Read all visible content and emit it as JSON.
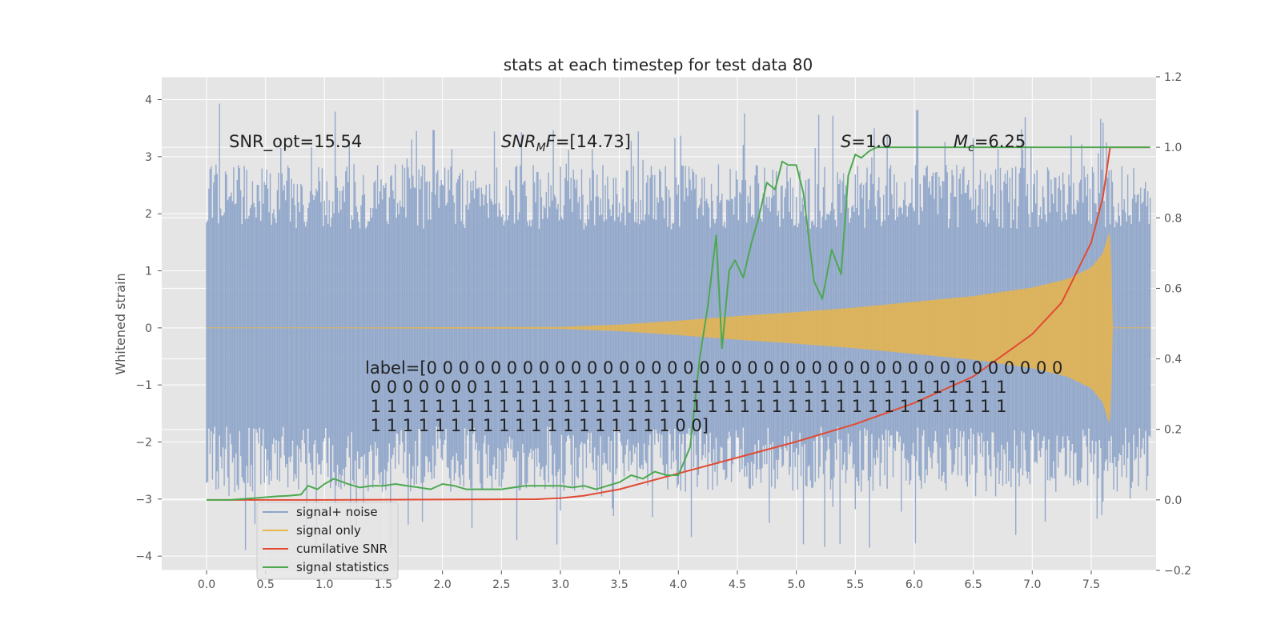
{
  "chart_data": {
    "type": "line",
    "title": "stats at each timestep for test data 80",
    "xlabel": "",
    "ylabel": "Whitened strain",
    "xlim": [
      -0.38,
      8.05
    ],
    "ylim": [
      -4.25,
      4.4
    ],
    "y2lim": [
      -0.2,
      1.2
    ],
    "x_ticks": [
      "0.0",
      "0.5",
      "1.0",
      "1.5",
      "2.0",
      "2.5",
      "3.0",
      "3.5",
      "4.0",
      "4.5",
      "5.0",
      "5.5",
      "6.0",
      "6.5",
      "7.0",
      "7.5"
    ],
    "y_ticks": [
      "−4",
      "−3",
      "−2",
      "−1",
      "0",
      "1",
      "2",
      "3",
      "4"
    ],
    "y2_ticks": [
      "−0.2",
      "0.0",
      "0.2",
      "0.4",
      "0.6",
      "0.8",
      "1.0",
      "1.2"
    ],
    "grid": true,
    "legend_position": "lower-left",
    "colors": {
      "background": "#e5e5e5",
      "grid": "#ffffff",
      "noise": "#8fa5c9",
      "signal": "#e8b54d",
      "snr": "#e24a33",
      "stats": "#4da851"
    },
    "annotations": {
      "snr_opt": "SNR_opt=15.54",
      "snr_mf_name": "SNR",
      "snr_mf_sub": "M",
      "snr_mf_mid": "F",
      "snr_mf_value": "=[14.73]",
      "s_name": "S",
      "s_value": "=1.0",
      "mc_name": "M",
      "mc_sub": "c",
      "mc_value": "=6.25",
      "label_lines": [
        "label=[0 0 0 0 0 0 0 0 0 0 0 0 0 0 0 0 0 0 0 0 0 0 0 0 0 0 0 0 0 0 0 0 0 0 0 0 0 0 0 0",
        " 0 0 0 0 0 0 0 1 1 1 1 1 1 1 1 1 1 1 1 1 1 1 1 1 1 1 1 1 1 1 1 1 1 1 1 1 1 1 1 1",
        " 1 1 1 1 1 1 1 1 1 1 1 1 1 1 1 1 1 1 1 1 1 1 1 1 1 1 1 1 1 1 1 1 1 1 1 1 1 1 1 1",
        " 1 1 1 1 1 1 1 1 1 1 1 1 1 1 1 1 1 1 1 0 0]"
      ]
    },
    "series": [
      {
        "name": "signal+ noise",
        "type": "noise-envelope",
        "x_range": [
          0.0,
          8.0
        ],
        "typical_amplitude": 2.3,
        "peak_max": 4.0,
        "peak_min": -3.9
      },
      {
        "name": "signal only",
        "type": "chirp-envelope",
        "x": [
          0.0,
          1.0,
          2.0,
          3.0,
          3.5,
          4.0,
          4.5,
          5.0,
          5.5,
          6.0,
          6.5,
          7.0,
          7.3,
          7.5,
          7.6,
          7.66,
          7.68,
          8.0
        ],
        "amplitude": [
          0.0,
          0.0,
          0.005,
          0.01,
          0.05,
          0.12,
          0.2,
          0.27,
          0.35,
          0.45,
          0.55,
          0.7,
          0.85,
          1.05,
          1.3,
          1.7,
          0.0,
          0.0
        ]
      },
      {
        "name": "cumilative SNR",
        "axis": "right",
        "x": [
          0.0,
          1.0,
          2.0,
          2.8,
          3.0,
          3.2,
          3.5,
          4.0,
          4.5,
          5.0,
          5.5,
          6.0,
          6.5,
          7.0,
          7.25,
          7.5,
          7.6,
          7.66,
          7.7,
          8.0
        ],
        "values": [
          0.0,
          0.0,
          0.001,
          0.002,
          0.005,
          0.012,
          0.03,
          0.075,
          0.12,
          0.165,
          0.215,
          0.275,
          0.35,
          0.47,
          0.56,
          0.73,
          0.86,
          1.0,
          1.0,
          1.0
        ]
      },
      {
        "name": "signal statistics",
        "axis": "right",
        "x": [
          0.0,
          0.2,
          0.4,
          0.6,
          0.7,
          0.8,
          0.86,
          0.94,
          1.0,
          1.08,
          1.2,
          1.3,
          1.4,
          1.5,
          1.6,
          1.7,
          1.8,
          1.9,
          2.0,
          2.1,
          2.2,
          2.3,
          2.5,
          2.7,
          3.0,
          3.1,
          3.2,
          3.3,
          3.4,
          3.5,
          3.6,
          3.7,
          3.8,
          3.9,
          4.0,
          4.1,
          4.18,
          4.25,
          4.32,
          4.37,
          4.43,
          4.48,
          4.55,
          4.62,
          4.68,
          4.75,
          4.82,
          4.88,
          4.93,
          5.0,
          5.06,
          5.15,
          5.22,
          5.3,
          5.38,
          5.44,
          5.5,
          5.55,
          5.62,
          5.68,
          5.74,
          5.8,
          5.86,
          6.0,
          8.0
        ],
        "values": [
          0.0,
          0.0,
          0.005,
          0.01,
          0.012,
          0.015,
          0.04,
          0.03,
          0.045,
          0.06,
          0.045,
          0.035,
          0.04,
          0.04,
          0.045,
          0.04,
          0.035,
          0.03,
          0.045,
          0.04,
          0.03,
          0.03,
          0.03,
          0.04,
          0.04,
          0.035,
          0.04,
          0.03,
          0.04,
          0.05,
          0.07,
          0.06,
          0.08,
          0.07,
          0.07,
          0.15,
          0.4,
          0.55,
          0.75,
          0.43,
          0.65,
          0.68,
          0.63,
          0.73,
          0.8,
          0.9,
          0.88,
          0.96,
          0.95,
          0.95,
          0.87,
          0.62,
          0.57,
          0.71,
          0.64,
          0.92,
          0.98,
          0.97,
          0.99,
          1.0,
          1.0,
          1.0,
          1.0,
          1.0,
          1.0
        ]
      }
    ]
  }
}
